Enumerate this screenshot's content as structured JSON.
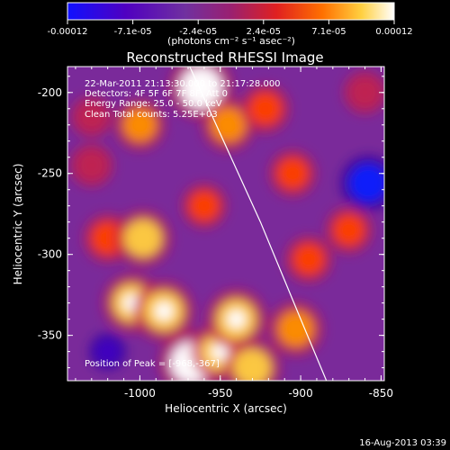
{
  "chart_data": {
    "type": "heatmap",
    "title": "Reconstructed RHESSI Image",
    "xlabel": "Heliocentric X (arcsec)",
    "ylabel": "Heliocentric Y (arcsec)",
    "xlim": [
      -1045,
      -848
    ],
    "ylim": [
      -378,
      -184
    ],
    "x_ticks": [
      "-1000",
      "-950",
      "-900",
      "-850"
    ],
    "x_tick_values": [
      -1000,
      -950,
      -900,
      -850
    ],
    "y_ticks": [
      "-200",
      "-250",
      "-300",
      "-350"
    ],
    "y_tick_values": [
      -200,
      -250,
      -300,
      -350
    ],
    "colorbar": {
      "label": "(photons cm⁻² s⁻¹ asec⁻²)",
      "tick_labels": [
        "-0.00012",
        "-7.1e-05",
        "-2.4e-05",
        "2.4e-05",
        "7.1e-05",
        "0.00012"
      ],
      "range": [
        -0.00012,
        0.00012
      ],
      "colormap": [
        "#1010ff",
        "#5000c0",
        "#7030a0",
        "#c02050",
        "#ff4000",
        "#ff9000",
        "#ffe060",
        "#ffffff"
      ]
    },
    "annotations": {
      "time": "22-Mar-2011 21:13:30.000 to 21:17:28.000",
      "detectors": "Detectors: 4F 5F 6F 7F 8F, Att 0",
      "energy": "Energy Range: 25.0 - 50.0 keV",
      "method": "Clean    Total counts: 5.25E+03",
      "peak": "Position of Peak = [-968,-367]"
    },
    "limb_curve": [
      [
        -969,
        -184
      ],
      [
        -925,
        -280
      ],
      [
        -900,
        -340
      ],
      [
        -884,
        -378
      ]
    ],
    "blobs": [
      {
        "x": -962,
        "y": -197,
        "value": 1.0
      },
      {
        "x": -945,
        "y": -220,
        "value": 0.7
      },
      {
        "x": -922,
        "y": -210,
        "value": 0.6
      },
      {
        "x": -1000,
        "y": -220,
        "value": 0.65
      },
      {
        "x": -1020,
        "y": -290,
        "value": 0.6
      },
      {
        "x": -998,
        "y": -290,
        "value": 0.8
      },
      {
        "x": -1005,
        "y": -330,
        "value": 0.85
      },
      {
        "x": -985,
        "y": -335,
        "value": 0.9
      },
      {
        "x": -968,
        "y": -367,
        "value": 1.0
      },
      {
        "x": -950,
        "y": -360,
        "value": 0.85
      },
      {
        "x": -940,
        "y": -340,
        "value": 0.9
      },
      {
        "x": -930,
        "y": -370,
        "value": 0.8
      },
      {
        "x": -903,
        "y": -346,
        "value": 0.75
      },
      {
        "x": -895,
        "y": -303,
        "value": 0.55
      },
      {
        "x": -870,
        "y": -285,
        "value": 0.55
      },
      {
        "x": -905,
        "y": -250,
        "value": 0.55
      },
      {
        "x": -960,
        "y": -270,
        "value": 0.5
      },
      {
        "x": -1030,
        "y": -245,
        "value": 0.45
      },
      {
        "x": -1030,
        "y": -215,
        "value": 0.4
      },
      {
        "x": -860,
        "y": -200,
        "value": 0.45
      },
      {
        "x": -858,
        "y": -256,
        "value": -0.8
      },
      {
        "x": -1020,
        "y": -360,
        "value": -0.3
      }
    ]
  },
  "footer": {
    "date": "16-Aug-2013 03:39"
  }
}
